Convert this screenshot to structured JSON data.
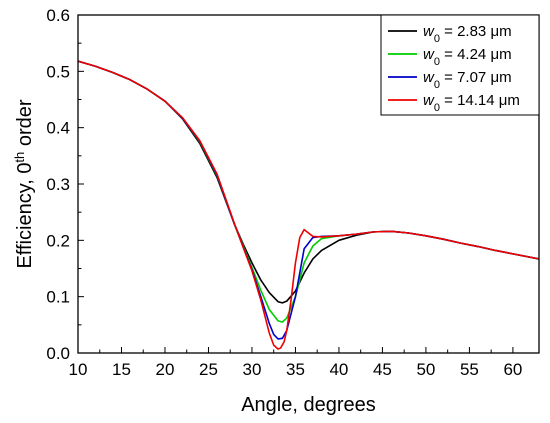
{
  "chart_data": {
    "type": "line",
    "title": "",
    "xlabel": "Angle, degrees",
    "ylabel": {
      "prefix": "Efficiency, 0",
      "sup": "th",
      "suffix": " order"
    },
    "xlim": [
      10,
      63
    ],
    "ylim": [
      0.0,
      0.6
    ],
    "xticks": [
      "10",
      "15",
      "20",
      "25",
      "30",
      "35",
      "40",
      "45",
      "50",
      "55",
      "60"
    ],
    "yticks": [
      "0.0",
      "0.1",
      "0.2",
      "0.3",
      "0.4",
      "0.5",
      "0.6"
    ],
    "grid": false,
    "legend_position": "top-right",
    "series": [
      {
        "legend": {
          "var": "w",
          "sub": "0",
          "value": " = 2.83 ",
          "unit": "μm"
        },
        "color": "#000000",
        "x": [
          10,
          12,
          14,
          16,
          18,
          20,
          22,
          24,
          26,
          28,
          29,
          30,
          31,
          32,
          33,
          33.5,
          34,
          35,
          36,
          37,
          38,
          40,
          42,
          44,
          46,
          48,
          50,
          52,
          54,
          56,
          58,
          60,
          62,
          63
        ],
        "y": [
          0.518,
          0.509,
          0.498,
          0.485,
          0.468,
          0.447,
          0.416,
          0.372,
          0.311,
          0.228,
          0.193,
          0.16,
          0.13,
          0.107,
          0.091,
          0.089,
          0.092,
          0.11,
          0.142,
          0.167,
          0.182,
          0.2,
          0.209,
          0.215,
          0.216,
          0.213,
          0.208,
          0.202,
          0.195,
          0.189,
          0.182,
          0.176,
          0.17,
          0.167
        ]
      },
      {
        "legend": {
          "var": "w",
          "sub": "0",
          "value": " = 4.24 ",
          "unit": "μm"
        },
        "color": "#00cc00",
        "x": [
          10,
          12,
          14,
          16,
          18,
          20,
          22,
          24,
          26,
          28,
          29,
          30,
          31,
          32,
          33,
          33.5,
          34,
          35,
          36,
          37,
          38,
          40,
          42,
          44,
          46,
          48,
          50,
          52,
          54,
          56,
          58,
          60,
          62,
          63
        ],
        "y": [
          0.518,
          0.509,
          0.498,
          0.485,
          0.468,
          0.447,
          0.417,
          0.375,
          0.314,
          0.228,
          0.19,
          0.152,
          0.112,
          0.077,
          0.057,
          0.055,
          0.062,
          0.1,
          0.16,
          0.19,
          0.203,
          0.208,
          0.211,
          0.215,
          0.216,
          0.213,
          0.208,
          0.202,
          0.195,
          0.189,
          0.182,
          0.176,
          0.17,
          0.167
        ]
      },
      {
        "legend": {
          "var": "w",
          "sub": "0",
          "value": " = 7.07 ",
          "unit": "μm"
        },
        "color": "#0000cc",
        "x": [
          10,
          12,
          14,
          16,
          18,
          20,
          22,
          24,
          26,
          28,
          29,
          30,
          31,
          32,
          32.5,
          33,
          33.5,
          34,
          35,
          36,
          37,
          38,
          40,
          42,
          44,
          46,
          48,
          50,
          52,
          54,
          56,
          58,
          60,
          62,
          63
        ],
        "y": [
          0.518,
          0.509,
          0.498,
          0.485,
          0.468,
          0.447,
          0.417,
          0.376,
          0.315,
          0.228,
          0.188,
          0.148,
          0.101,
          0.052,
          0.033,
          0.025,
          0.026,
          0.04,
          0.1,
          0.185,
          0.205,
          0.207,
          0.208,
          0.211,
          0.215,
          0.216,
          0.213,
          0.208,
          0.202,
          0.195,
          0.189,
          0.182,
          0.176,
          0.17,
          0.167
        ]
      },
      {
        "legend": {
          "var": "w",
          "sub": "0",
          "value": " = 14.14 ",
          "unit": "μm"
        },
        "color": "#ee0000",
        "x": [
          10,
          12,
          14,
          16,
          18,
          20,
          22,
          24,
          26,
          28,
          29,
          30,
          31,
          32,
          32.5,
          33,
          33.3,
          33.7,
          34,
          34.5,
          35,
          35.5,
          36,
          36.5,
          37,
          38,
          40,
          42,
          44,
          46,
          48,
          50,
          52,
          54,
          56,
          58,
          60,
          62,
          63
        ],
        "y": [
          0.518,
          0.509,
          0.498,
          0.485,
          0.468,
          0.447,
          0.418,
          0.377,
          0.317,
          0.229,
          0.187,
          0.146,
          0.095,
          0.035,
          0.014,
          0.007,
          0.009,
          0.02,
          0.04,
          0.095,
          0.16,
          0.205,
          0.219,
          0.213,
          0.207,
          0.206,
          0.208,
          0.211,
          0.215,
          0.216,
          0.213,
          0.208,
          0.202,
          0.195,
          0.189,
          0.182,
          0.176,
          0.17,
          0.167
        ]
      }
    ]
  }
}
